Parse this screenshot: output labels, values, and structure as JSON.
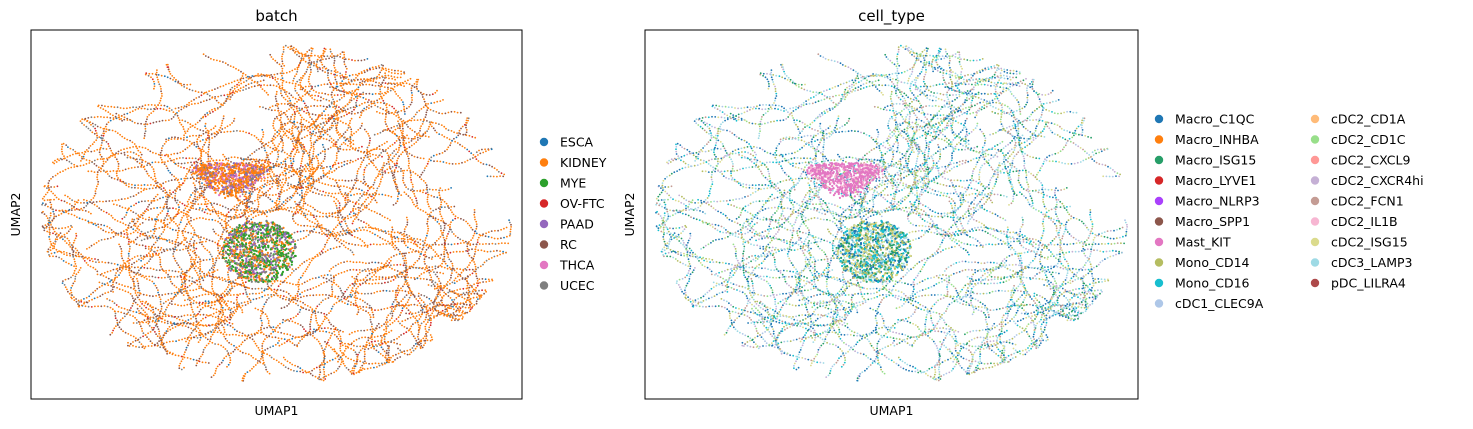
{
  "chart_data": [
    {
      "type": "scatter",
      "title": "batch",
      "xlabel": "UMAP1",
      "ylabel": "UMAP2",
      "legend_placement": "right",
      "legend_columns": 1,
      "grid": false,
      "ticks": false,
      "dominant_category": "KIDNEY",
      "categories": [
        {
          "name": "ESCA",
          "color": "#1f77b4"
        },
        {
          "name": "KIDNEY",
          "color": "#ff7f0e"
        },
        {
          "name": "MYE",
          "color": "#2ca02c"
        },
        {
          "name": "OV-FTC",
          "color": "#d62728"
        },
        {
          "name": "PAAD",
          "color": "#9467bd"
        },
        {
          "name": "RC",
          "color": "#8c564b"
        },
        {
          "name": "THCA",
          "color": "#e377c2"
        },
        {
          "name": "UCEC",
          "color": "#7f7f7f"
        }
      ]
    },
    {
      "type": "scatter",
      "title": "cell_type",
      "xlabel": "UMAP1",
      "ylabel": "UMAP2",
      "legend_placement": "right",
      "legend_columns": 2,
      "grid": false,
      "ticks": false,
      "categories": [
        {
          "name": "Macro_C1QC",
          "color": "#1f77b4"
        },
        {
          "name": "Macro_INHBA",
          "color": "#ff7f0e"
        },
        {
          "name": "Macro_ISG15",
          "color": "#279e68"
        },
        {
          "name": "Macro_LYVE1",
          "color": "#d62728"
        },
        {
          "name": "Macro_NLRP3",
          "color": "#aa40fc"
        },
        {
          "name": "Macro_SPP1",
          "color": "#8c564b"
        },
        {
          "name": "Mast_KIT",
          "color": "#e377c2"
        },
        {
          "name": "Mono_CD14",
          "color": "#b5bd61"
        },
        {
          "name": "Mono_CD16",
          "color": "#17becf"
        },
        {
          "name": "cDC1_CLEC9A",
          "color": "#aec7e8"
        },
        {
          "name": "cDC2_CD1A",
          "color": "#ffbb78"
        },
        {
          "name": "cDC2_CD1C",
          "color": "#98df8a"
        },
        {
          "name": "cDC2_CXCL9",
          "color": "#ff9896"
        },
        {
          "name": "cDC2_CXCR4hi",
          "color": "#c5b0d5"
        },
        {
          "name": "cDC2_FCN1",
          "color": "#c49c94"
        },
        {
          "name": "cDC2_IL1B",
          "color": "#f7b6d2"
        },
        {
          "name": "cDC2_ISG15",
          "color": "#dbdb8d"
        },
        {
          "name": "cDC3_LAMP3",
          "color": "#9edae5"
        },
        {
          "name": "pDC_LILRA4",
          "color": "#ad494a"
        }
      ]
    }
  ]
}
